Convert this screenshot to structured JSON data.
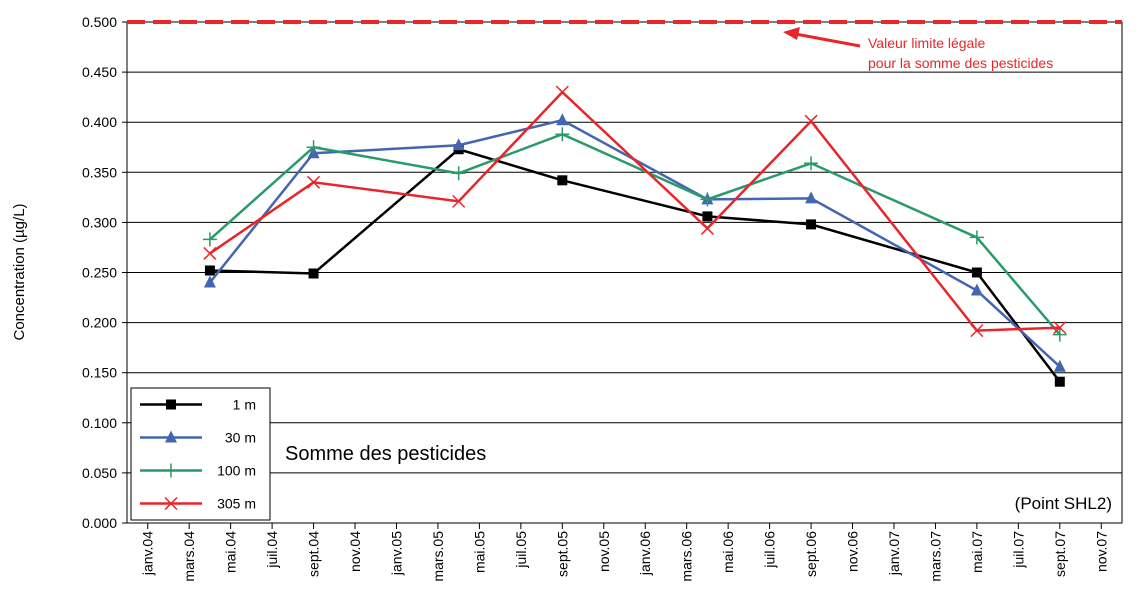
{
  "chart_data": {
    "type": "line",
    "y_label": "Concentration  (µg/L)",
    "inner_title": "Somme des pesticides",
    "point_label": "(Point SHL2)",
    "reference_line": {
      "value": 0.5,
      "color": "#e8262a",
      "label": [
        "Valeur limite légale",
        "pour la somme des pesticides"
      ]
    },
    "x": [
      "2004-04",
      "2004-09",
      "2005-04",
      "2005-09",
      "2006-04",
      "2006-09",
      "2007-05",
      "2007-09"
    ],
    "xlim": [
      "2003-12",
      "2007-12"
    ],
    "xticks": [
      {
        "value": "2004-01",
        "label": "janv.04"
      },
      {
        "value": "2004-03",
        "label": "mars.04"
      },
      {
        "value": "2004-05",
        "label": "mai.04"
      },
      {
        "value": "2004-07",
        "label": "juil.04"
      },
      {
        "value": "2004-09",
        "label": "sept.04"
      },
      {
        "value": "2004-11",
        "label": "nov.04"
      },
      {
        "value": "2005-01",
        "label": "janv.05"
      },
      {
        "value": "2005-03",
        "label": "mars.05"
      },
      {
        "value": "2005-05",
        "label": "mai.05"
      },
      {
        "value": "2005-07",
        "label": "juil.05"
      },
      {
        "value": "2005-09",
        "label": "sept.05"
      },
      {
        "value": "2005-11",
        "label": "nov.05"
      },
      {
        "value": "2006-01",
        "label": "janv.06"
      },
      {
        "value": "2006-03",
        "label": "mars.06"
      },
      {
        "value": "2006-05",
        "label": "mai.06"
      },
      {
        "value": "2006-07",
        "label": "juil.06"
      },
      {
        "value": "2006-09",
        "label": "sept.06"
      },
      {
        "value": "2006-11",
        "label": "nov.06"
      },
      {
        "value": "2007-01",
        "label": "janv.07"
      },
      {
        "value": "2007-03",
        "label": "mars.07"
      },
      {
        "value": "2007-05",
        "label": "mai.07"
      },
      {
        "value": "2007-07",
        "label": "juil.07"
      },
      {
        "value": "2007-09",
        "label": "sept.07"
      },
      {
        "value": "2007-11",
        "label": "nov.07"
      }
    ],
    "ylim": [
      0,
      0.5
    ],
    "yticks": [
      {
        "value": 0,
        "label": "0.000"
      },
      {
        "value": 0.05,
        "label": "0.050"
      },
      {
        "value": 0.1,
        "label": "0.100"
      },
      {
        "value": 0.15,
        "label": "0.150"
      },
      {
        "value": 0.2,
        "label": "0.200"
      },
      {
        "value": 0.25,
        "label": "0.250"
      },
      {
        "value": 0.3,
        "label": "0.300"
      },
      {
        "value": 0.35,
        "label": "0.350"
      },
      {
        "value": 0.4,
        "label": "0.400"
      },
      {
        "value": 0.45,
        "label": "0.450"
      },
      {
        "value": 0.5,
        "label": "0.500"
      }
    ],
    "grid": true,
    "legend": "bottom-left",
    "series": [
      {
        "name": "1 m",
        "color": "#000000",
        "marker": "square",
        "values": [
          0.252,
          0.249,
          0.373,
          0.342,
          0.306,
          0.298,
          0.25,
          0.141
        ]
      },
      {
        "name": "30 m",
        "color": "#4466b0",
        "marker": "triangle",
        "values": [
          0.24,
          0.369,
          0.377,
          0.402,
          0.323,
          0.324,
          0.232,
          0.156
        ]
      },
      {
        "name": "100 m",
        "color": "#2a9a6a",
        "marker": "plus",
        "values": [
          0.283,
          0.375,
          0.349,
          0.388,
          0.323,
          0.359,
          0.285,
          0.188
        ]
      },
      {
        "name": "305 m",
        "color": "#e8262a",
        "marker": "cross",
        "values": [
          0.269,
          0.34,
          0.321,
          0.43,
          0.294,
          0.401,
          0.192,
          0.195
        ]
      }
    ]
  }
}
